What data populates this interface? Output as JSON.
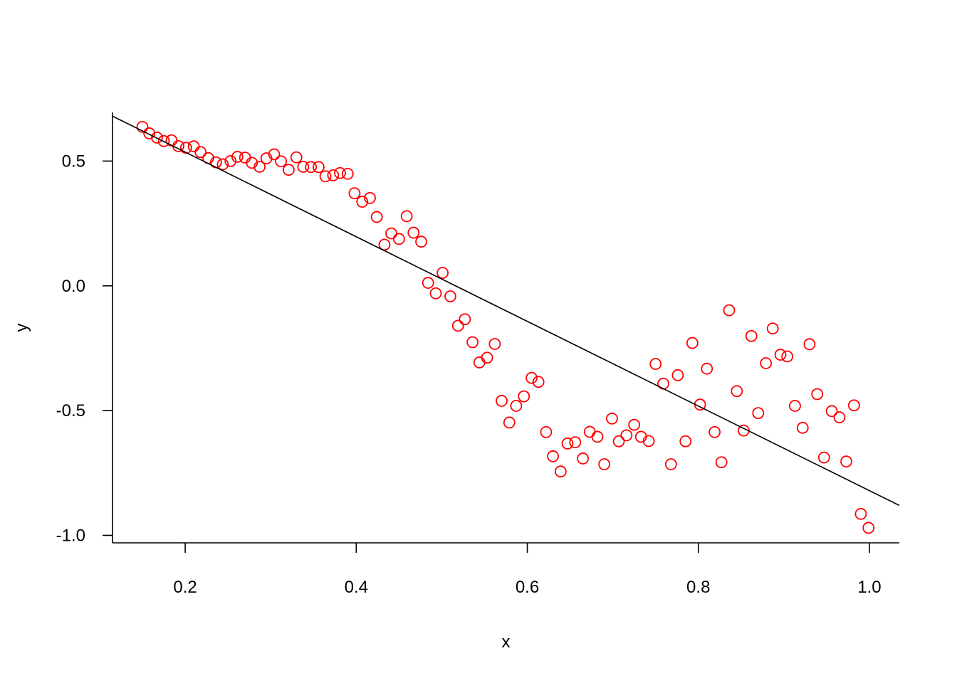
{
  "chart_data": {
    "type": "scatter",
    "xlabel": "x",
    "ylabel": "y",
    "xlim": [
      0.115,
      1.035
    ],
    "ylim": [
      -1.03,
      0.695
    ],
    "x_ticks": [
      0.2,
      0.4,
      0.6,
      0.8,
      1.0
    ],
    "x_tick_labels": [
      "0.2",
      "0.4",
      "0.6",
      "0.8",
      "1.0"
    ],
    "y_ticks": [
      -1.0,
      -0.5,
      0.0,
      0.5
    ],
    "y_tick_labels": [
      "-1.0",
      "-0.5",
      "0.0",
      "0.5"
    ],
    "grid": false,
    "point_color": "#ff0000",
    "line_color": "#000000",
    "fit_line": {
      "x": [
        0.115,
        1.035
      ],
      "y": [
        0.68,
        -0.88
      ]
    },
    "points": [
      [
        0.15,
        0.637
      ],
      [
        0.158,
        0.611
      ],
      [
        0.167,
        0.594
      ],
      [
        0.175,
        0.58
      ],
      [
        0.184,
        0.583
      ],
      [
        0.192,
        0.56
      ],
      [
        0.201,
        0.553
      ],
      [
        0.21,
        0.559
      ],
      [
        0.218,
        0.536
      ],
      [
        0.227,
        0.512
      ],
      [
        0.236,
        0.495
      ],
      [
        0.244,
        0.487
      ],
      [
        0.253,
        0.5
      ],
      [
        0.261,
        0.517
      ],
      [
        0.27,
        0.514
      ],
      [
        0.278,
        0.493
      ],
      [
        0.287,
        0.477
      ],
      [
        0.295,
        0.511
      ],
      [
        0.304,
        0.527
      ],
      [
        0.312,
        0.499
      ],
      [
        0.321,
        0.465
      ],
      [
        0.33,
        0.515
      ],
      [
        0.338,
        0.477
      ],
      [
        0.347,
        0.476
      ],
      [
        0.356,
        0.476
      ],
      [
        0.364,
        0.439
      ],
      [
        0.373,
        0.443
      ],
      [
        0.381,
        0.452
      ],
      [
        0.39,
        0.449
      ],
      [
        0.398,
        0.371
      ],
      [
        0.407,
        0.337
      ],
      [
        0.416,
        0.352
      ],
      [
        0.424,
        0.276
      ],
      [
        0.433,
        0.165
      ],
      [
        0.441,
        0.21
      ],
      [
        0.45,
        0.188
      ],
      [
        0.459,
        0.279
      ],
      [
        0.467,
        0.213
      ],
      [
        0.476,
        0.177
      ],
      [
        0.484,
        0.012
      ],
      [
        0.493,
        -0.03
      ],
      [
        0.501,
        0.052
      ],
      [
        0.51,
        -0.042
      ],
      [
        0.519,
        -0.16
      ],
      [
        0.527,
        -0.134
      ],
      [
        0.536,
        -0.226
      ],
      [
        0.544,
        -0.307
      ],
      [
        0.553,
        -0.288
      ],
      [
        0.562,
        -0.233
      ],
      [
        0.57,
        -0.461
      ],
      [
        0.579,
        -0.548
      ],
      [
        0.587,
        -0.481
      ],
      [
        0.596,
        -0.443
      ],
      [
        0.605,
        -0.369
      ],
      [
        0.613,
        -0.385
      ],
      [
        0.622,
        -0.586
      ],
      [
        0.63,
        -0.683
      ],
      [
        0.639,
        -0.744
      ],
      [
        0.647,
        -0.632
      ],
      [
        0.656,
        -0.627
      ],
      [
        0.665,
        -0.692
      ],
      [
        0.673,
        -0.585
      ],
      [
        0.682,
        -0.605
      ],
      [
        0.69,
        -0.715
      ],
      [
        0.699,
        -0.532
      ],
      [
        0.707,
        -0.623
      ],
      [
        0.716,
        -0.599
      ],
      [
        0.725,
        -0.557
      ],
      [
        0.733,
        -0.605
      ],
      [
        0.742,
        -0.622
      ],
      [
        0.75,
        -0.313
      ],
      [
        0.759,
        -0.392
      ],
      [
        0.768,
        -0.715
      ],
      [
        0.776,
        -0.358
      ],
      [
        0.785,
        -0.623
      ],
      [
        0.793,
        -0.229
      ],
      [
        0.802,
        -0.476
      ],
      [
        0.81,
        -0.332
      ],
      [
        0.819,
        -0.586
      ],
      [
        0.827,
        -0.707
      ],
      [
        0.836,
        -0.098
      ],
      [
        0.845,
        -0.422
      ],
      [
        0.853,
        -0.58
      ],
      [
        0.862,
        -0.201
      ],
      [
        0.87,
        -0.51
      ],
      [
        0.879,
        -0.31
      ],
      [
        0.887,
        -0.171
      ],
      [
        0.896,
        -0.276
      ],
      [
        0.904,
        -0.283
      ],
      [
        0.913,
        -0.481
      ],
      [
        0.922,
        -0.569
      ],
      [
        0.93,
        -0.234
      ],
      [
        0.939,
        -0.434
      ],
      [
        0.947,
        -0.688
      ],
      [
        0.956,
        -0.502
      ],
      [
        0.965,
        -0.527
      ],
      [
        0.973,
        -0.704
      ],
      [
        0.982,
        -0.479
      ],
      [
        0.99,
        -0.914
      ],
      [
        0.999,
        -0.97
      ]
    ]
  }
}
